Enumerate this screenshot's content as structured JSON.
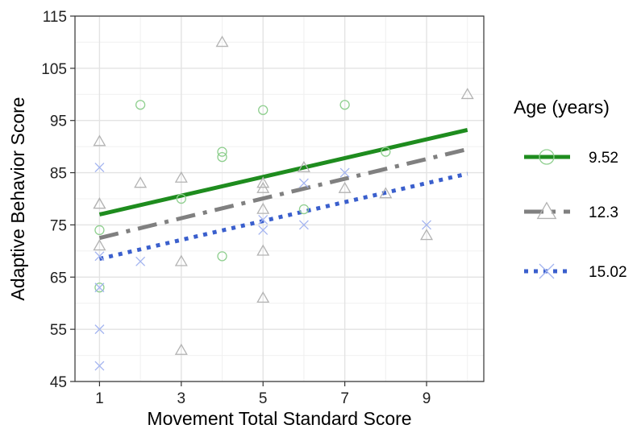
{
  "chart_data": {
    "type": "scatter",
    "xlabel": "Movement Total Standard Score",
    "ylabel": "Adaptive Behavior Score",
    "xlim": [
      0.4,
      10.4
    ],
    "ylim": [
      45,
      115
    ],
    "x_ticks": [
      1,
      3,
      5,
      7,
      9
    ],
    "y_ticks": [
      45,
      55,
      65,
      75,
      85,
      95,
      105,
      115
    ],
    "x_tick_labels": [
      "1",
      "3",
      "5",
      "7",
      "9"
    ],
    "y_tick_labels": [
      "45",
      "55",
      "65",
      "75",
      "85",
      "95",
      "105",
      "115"
    ],
    "grid": true,
    "legend": {
      "title": "Age (years)",
      "placement": "right"
    },
    "series": [
      {
        "name": "9.52",
        "color": "#1e8c1e",
        "point_color": "#8fcf8f",
        "marker": "circle",
        "line_style": "solid",
        "points": [
          [
            1,
            74
          ],
          [
            1,
            63
          ],
          [
            2,
            98
          ],
          [
            3,
            80
          ],
          [
            4,
            89
          ],
          [
            4,
            88
          ],
          [
            4,
            69
          ],
          [
            5,
            97
          ],
          [
            6,
            78
          ],
          [
            7,
            98
          ],
          [
            8,
            89
          ]
        ],
        "fit": [
          [
            1,
            77
          ],
          [
            10,
            93.2
          ]
        ]
      },
      {
        "name": "12.3",
        "color": "#808080",
        "point_color": "#b3b3b3",
        "marker": "triangle",
        "line_style": "dashdot",
        "points": [
          [
            1,
            91
          ],
          [
            1,
            79
          ],
          [
            1,
            79
          ],
          [
            1,
            71
          ],
          [
            2,
            83
          ],
          [
            3,
            84
          ],
          [
            3,
            68
          ],
          [
            3,
            51
          ],
          [
            4,
            110
          ],
          [
            5,
            83
          ],
          [
            5,
            82
          ],
          [
            5,
            78
          ],
          [
            5,
            70
          ],
          [
            5,
            61
          ],
          [
            6,
            86
          ],
          [
            7,
            82
          ],
          [
            8,
            81
          ],
          [
            9,
            73
          ],
          [
            10,
            100
          ]
        ],
        "fit": [
          [
            1,
            72.5
          ],
          [
            10,
            89.5
          ]
        ]
      },
      {
        "name": "15.02",
        "color": "#3a5fcd",
        "point_color": "#a3b4f0",
        "marker": "x",
        "line_style": "dotted",
        "points": [
          [
            1,
            86
          ],
          [
            1,
            69
          ],
          [
            1,
            63
          ],
          [
            1,
            55
          ],
          [
            1,
            48
          ],
          [
            2,
            68
          ],
          [
            5,
            76
          ],
          [
            5,
            74
          ],
          [
            6,
            83
          ],
          [
            6,
            75
          ],
          [
            7,
            85
          ],
          [
            9,
            75
          ]
        ],
        "fit": [
          [
            1,
            68.5
          ],
          [
            10,
            84.8
          ]
        ]
      }
    ]
  }
}
